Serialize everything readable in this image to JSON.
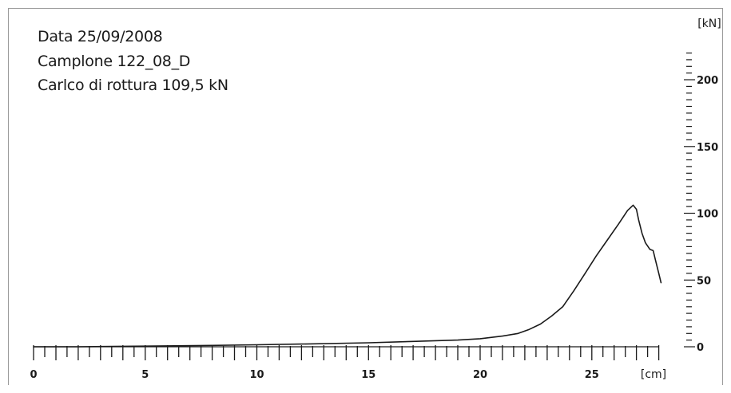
{
  "info": {
    "date": "Data 25/09/2008",
    "sample": "Camplone 122_08_D",
    "breaking_load": "Carlco di rottura 109,5 kN"
  },
  "chart_data": {
    "type": "line",
    "title": "",
    "xlabel": "",
    "ylabel": "",
    "x_unit": "[cm]",
    "y_unit": "[kN]",
    "xlim": [
      0,
      28
    ],
    "ylim": [
      0,
      220
    ],
    "x_ticks": [
      0,
      5,
      10,
      15,
      20,
      25
    ],
    "y_ticks": [
      0,
      50,
      100,
      150,
      200
    ],
    "grid": false,
    "y_axis_position": "right",
    "line_color": "#1a1a1a",
    "series": [
      {
        "x": [
          0,
          2,
          5,
          8,
          10,
          12,
          15,
          17,
          19,
          20,
          21,
          21.7,
          22.2,
          22.7,
          23.2,
          23.7,
          24.2,
          24.7,
          25.2,
          25.7,
          26.2,
          26.6,
          26.85,
          27.0,
          27.1,
          27.25,
          27.4,
          27.6,
          27.75,
          27.85,
          28.0,
          28.1
        ],
        "y": [
          0,
          0,
          0.5,
          1,
          1.5,
          2,
          3,
          4,
          5,
          6,
          8,
          10,
          13,
          17,
          23,
          30,
          42,
          55,
          68,
          80,
          92,
          102,
          106,
          103,
          95,
          85,
          78,
          73,
          72,
          65,
          55,
          48
        ]
      }
    ]
  }
}
